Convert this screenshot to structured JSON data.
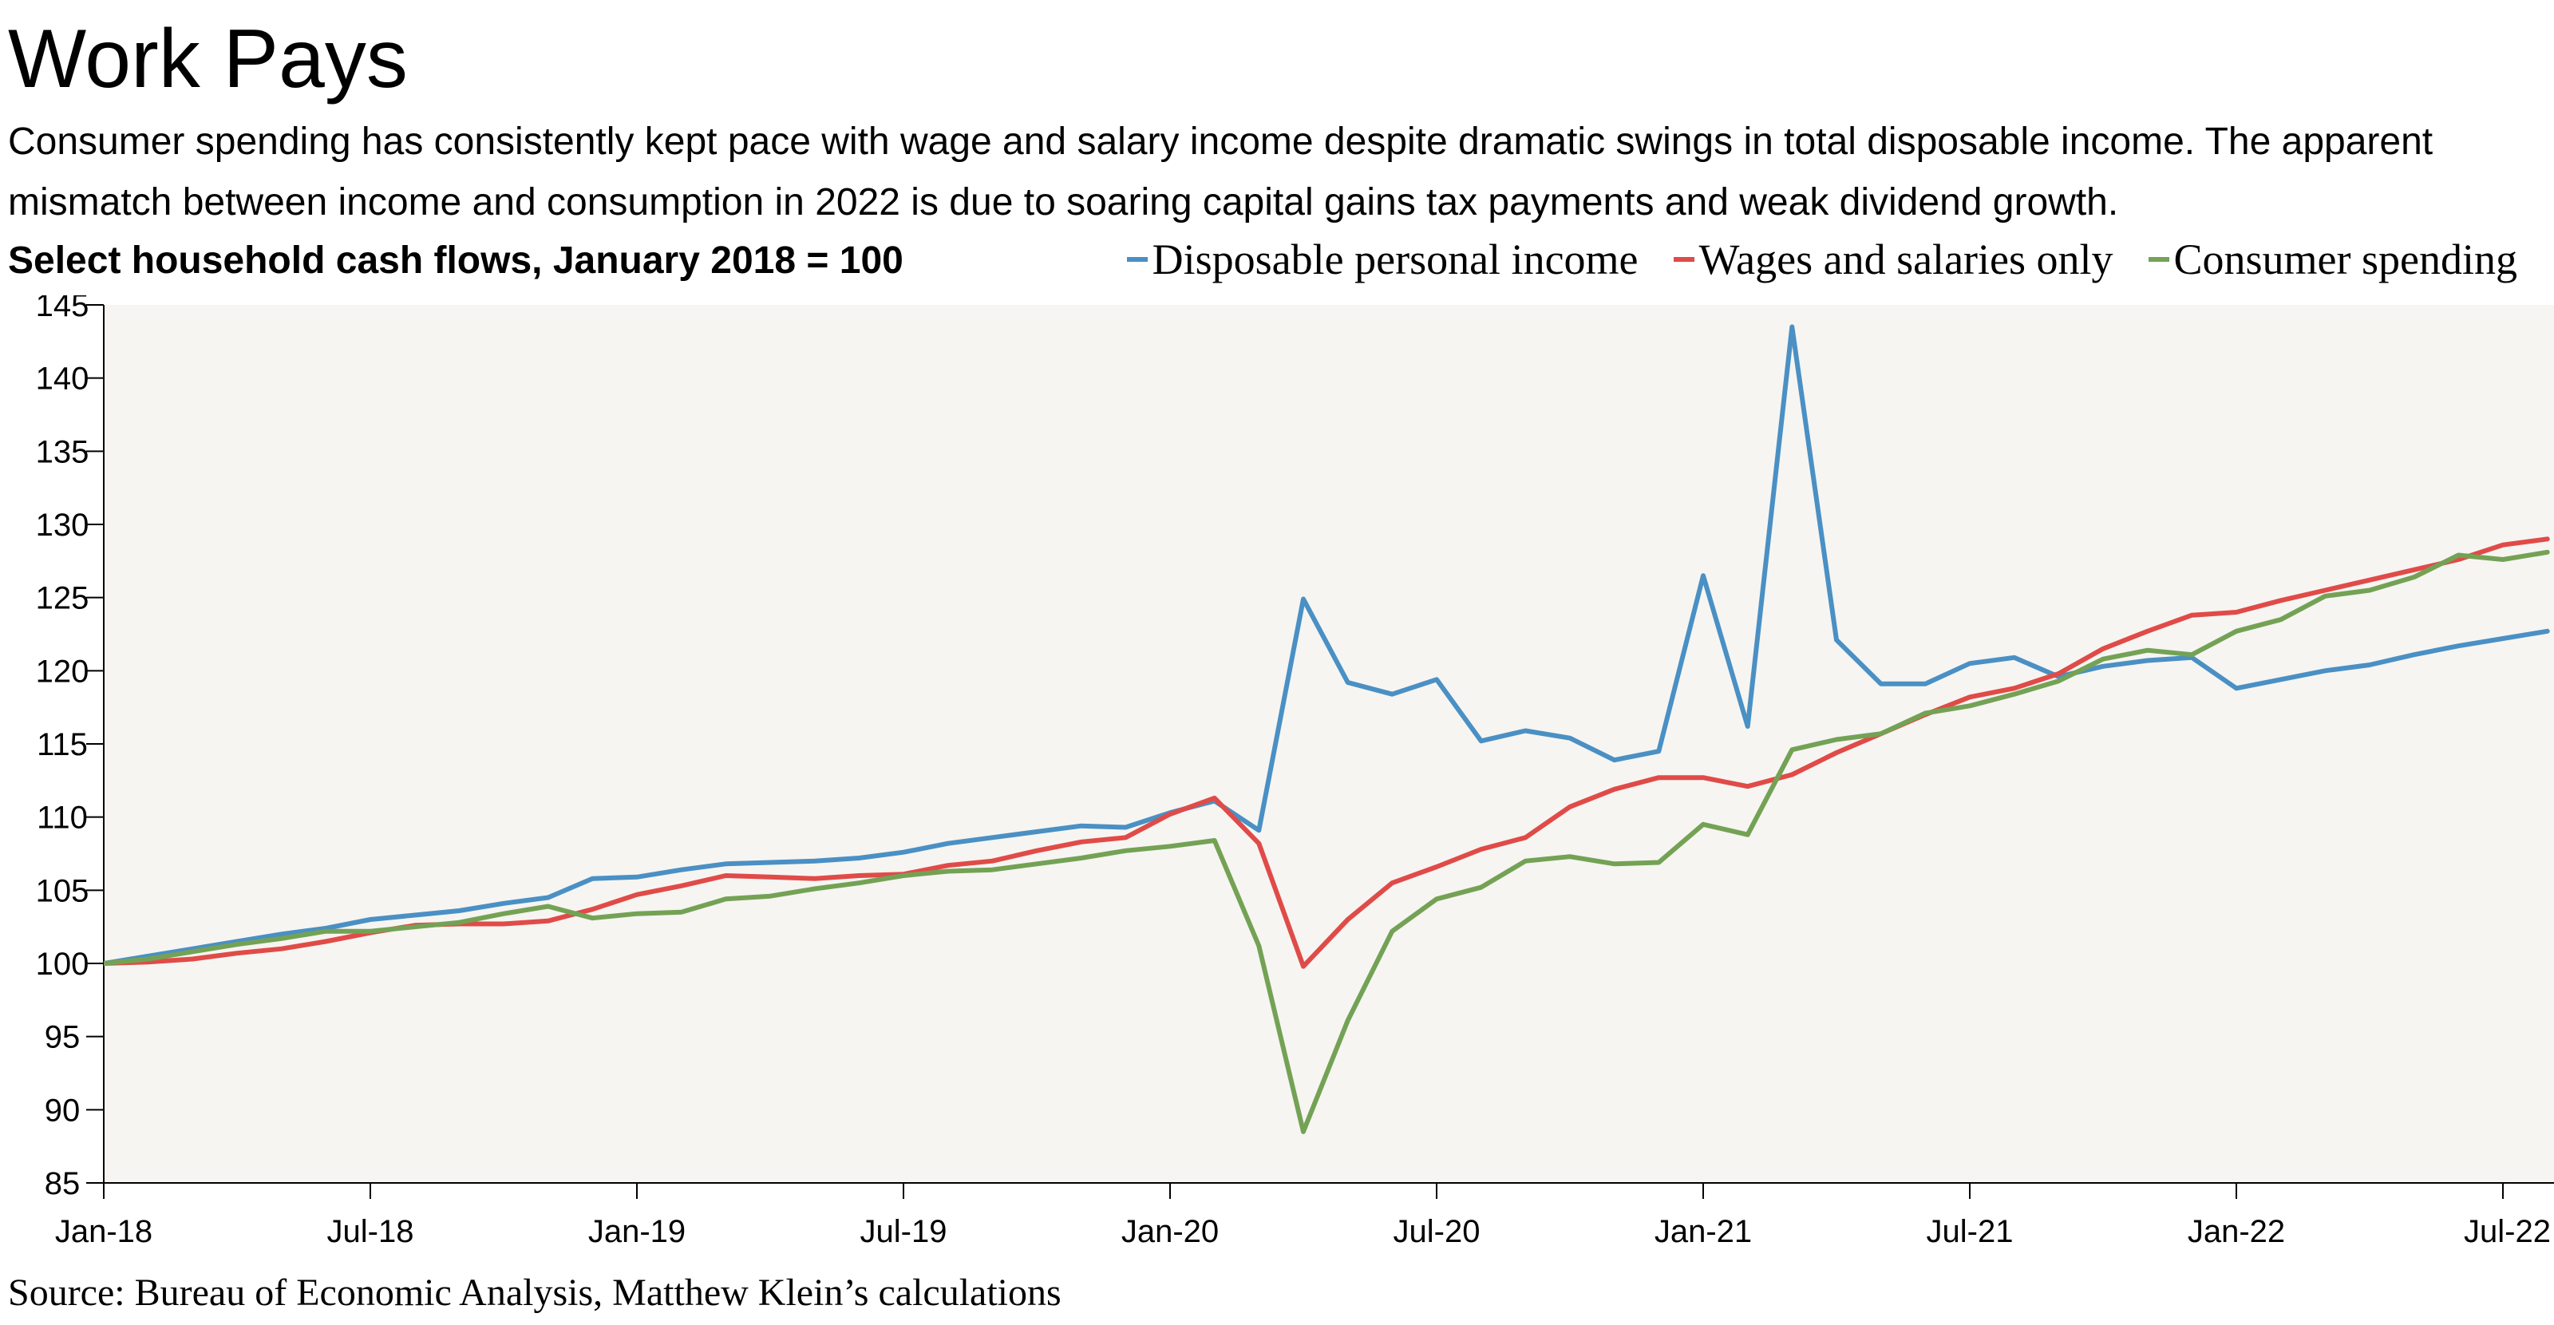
{
  "title": "Work Pays",
  "subtitle": "Consumer spending has consistently kept pace with wage and salary income despite dramatic swings in total disposable income. The apparent mismatch between income and consumption in 2022 is due to soaring capital gains tax payments and weak dividend growth.",
  "source": "Source: Bureau of Economic Analysis, Matthew Klein’s calculations",
  "chart_data": {
    "type": "line",
    "title": "Select household cash flows, January 2018 = 100",
    "xlabel": "",
    "ylabel": "",
    "ylim": [
      85,
      145
    ],
    "yticks": [
      85,
      90,
      95,
      100,
      105,
      110,
      115,
      120,
      125,
      130,
      135,
      140,
      145
    ],
    "x": [
      "Jan-18",
      "Feb-18",
      "Mar-18",
      "Apr-18",
      "May-18",
      "Jun-18",
      "Jul-18",
      "Aug-18",
      "Sep-18",
      "Oct-18",
      "Nov-18",
      "Dec-18",
      "Jan-19",
      "Feb-19",
      "Mar-19",
      "Apr-19",
      "May-19",
      "Jun-19",
      "Jul-19",
      "Aug-19",
      "Sep-19",
      "Oct-19",
      "Nov-19",
      "Dec-19",
      "Jan-20",
      "Feb-20",
      "Mar-20",
      "Apr-20",
      "May-20",
      "Jun-20",
      "Jul-20",
      "Aug-20",
      "Sep-20",
      "Oct-20",
      "Nov-20",
      "Dec-20",
      "Jan-21",
      "Feb-21",
      "Mar-21",
      "Apr-21",
      "May-21",
      "Jun-21",
      "Jul-21",
      "Aug-21",
      "Sep-21",
      "Oct-21",
      "Nov-21",
      "Dec-21",
      "Jan-22",
      "Feb-22",
      "Mar-22",
      "Apr-22",
      "May-22",
      "Jun-22",
      "Jul-22",
      "Aug-22"
    ],
    "xtick_labels": [
      "Jan-18",
      "Jul-18",
      "Jan-19",
      "Jul-19",
      "Jan-20",
      "Jul-20",
      "Jan-21",
      "Jul-21",
      "Jan-22",
      "Jul-22"
    ],
    "grid": false,
    "legend_position": "top-right",
    "plot_background": "#f6f5f2",
    "series": [
      {
        "name": "Disposable personal income",
        "color": "#4a90c4",
        "values": [
          100,
          100.5,
          101,
          101.5,
          102,
          102.4,
          103,
          103.3,
          103.6,
          104.1,
          104.5,
          105.8,
          105.9,
          106.4,
          106.8,
          106.9,
          107,
          107.2,
          107.6,
          108.2,
          108.6,
          109,
          109.4,
          109.3,
          110.3,
          111.1,
          109.1,
          124.9,
          119.2,
          118.4,
          119.4,
          115.2,
          115.9,
          115.4,
          113.9,
          114.5,
          126.5,
          116.2,
          143.5,
          122.1,
          119.1,
          119.1,
          120.5,
          120.9,
          119.6,
          120.3,
          120.7,
          120.9,
          118.8,
          119.4,
          120,
          120.4,
          121.1,
          121.7,
          122.2,
          122.7
        ]
      },
      {
        "name": "Wages and salaries only",
        "color": "#e04b48",
        "values": [
          100,
          100.1,
          100.3,
          100.7,
          101,
          101.5,
          102.1,
          102.6,
          102.7,
          102.7,
          102.9,
          103.7,
          104.7,
          105.3,
          106,
          105.9,
          105.8,
          106,
          106.1,
          106.7,
          107,
          107.7,
          108.3,
          108.6,
          110.2,
          111.3,
          108.2,
          99.8,
          103,
          105.5,
          106.6,
          107.8,
          108.6,
          110.7,
          111.9,
          112.7,
          112.7,
          112.1,
          112.9,
          114.4,
          115.7,
          117,
          118.2,
          118.8,
          119.8,
          121.5,
          122.7,
          123.8,
          124,
          124.8,
          125.5,
          126.2,
          126.9,
          127.6,
          128.6,
          129
        ]
      },
      {
        "name": "Consumer spending",
        "color": "#74a255",
        "values": [
          100,
          100.3,
          100.8,
          101.3,
          101.7,
          102.2,
          102.2,
          102.5,
          102.8,
          103.4,
          103.9,
          103.1,
          103.4,
          103.5,
          104.4,
          104.6,
          105.1,
          105.5,
          106,
          106.3,
          106.4,
          106.8,
          107.2,
          107.7,
          108,
          108.4,
          101.2,
          88.5,
          96.1,
          102.2,
          104.4,
          105.2,
          107,
          107.3,
          106.8,
          106.9,
          109.5,
          108.8,
          114.6,
          115.3,
          115.7,
          117.1,
          117.6,
          118.4,
          119.3,
          120.8,
          121.4,
          121.1,
          122.7,
          123.5,
          125.1,
          125.5,
          126.4,
          127.9,
          127.6,
          128.1
        ]
      }
    ]
  }
}
